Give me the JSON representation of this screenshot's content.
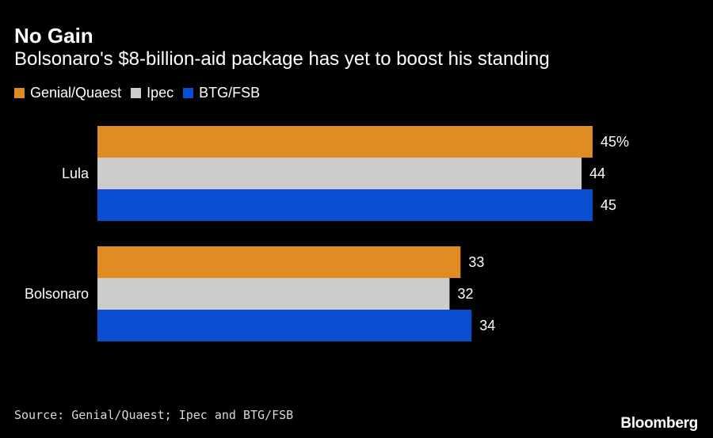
{
  "header": {
    "title": "No Gain",
    "subtitle": "Bolsonaro's $8-billion-aid package has yet to boost his standing"
  },
  "footer": {
    "source": "Source: Genial/Quaest; Ipec and BTG/FSB",
    "brand": "Bloomberg"
  },
  "chart_data": {
    "type": "bar",
    "orientation": "horizontal",
    "title": "No Gain",
    "subtitle": "Bolsonaro's $8-billion-aid package has yet to boost his standing",
    "categories": [
      "Lula",
      "Bolsonaro"
    ],
    "series": [
      {
        "name": "Genial/Quaest",
        "color": "#e08c23",
        "values": [
          45,
          33
        ],
        "labels": [
          "45%",
          "33"
        ]
      },
      {
        "name": "Ipec",
        "color": "#cccccc",
        "values": [
          44,
          32
        ],
        "labels": [
          "44",
          "32"
        ]
      },
      {
        "name": "BTG/FSB",
        "color": "#0a4fd1",
        "values": [
          45,
          34
        ],
        "labels": [
          "45",
          "34"
        ]
      }
    ],
    "xlim": [
      0,
      45
    ],
    "grid": false,
    "legend_position": "top-left"
  }
}
